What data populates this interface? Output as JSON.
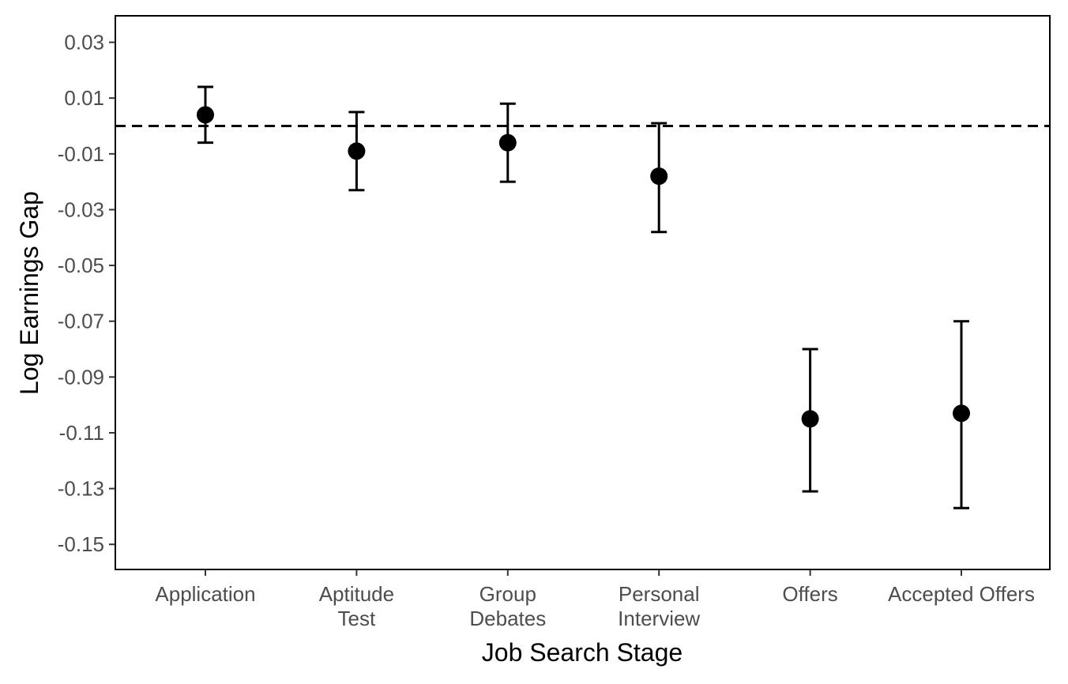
{
  "chart_data": {
    "type": "scatter",
    "subtype": "point-with-error-bars",
    "title": "",
    "xlabel": "Job Search Stage",
    "ylabel": "Log Earnings Gap",
    "categories": [
      [
        "Application"
      ],
      [
        "Aptitude",
        "Test"
      ],
      [
        "Group",
        "Debates"
      ],
      [
        "Personal",
        "Interview"
      ],
      [
        "Offers"
      ],
      [
        "Accepted Offers"
      ]
    ],
    "series": [
      {
        "values": [
          0.004,
          -0.009,
          -0.006,
          -0.018,
          -0.105,
          -0.103
        ],
        "lower": [
          -0.006,
          -0.023,
          -0.02,
          -0.038,
          -0.131,
          -0.137
        ],
        "upper": [
          0.014,
          0.005,
          0.008,
          0.001,
          -0.08,
          -0.07
        ]
      }
    ],
    "yticks": [
      "0.03",
      "0.01",
      "-0.01",
      "-0.03",
      "-0.05",
      "-0.07",
      "-0.09",
      "-0.11",
      "-0.13",
      "-0.15"
    ],
    "ylim": [
      -0.159,
      0.0395
    ],
    "reference_line": {
      "y": 0,
      "style": "dashed"
    },
    "grid": false,
    "legend": "none",
    "colors": {
      "point": "#000000",
      "axis": "#000000",
      "tick_text": "#4d4d4d"
    }
  }
}
